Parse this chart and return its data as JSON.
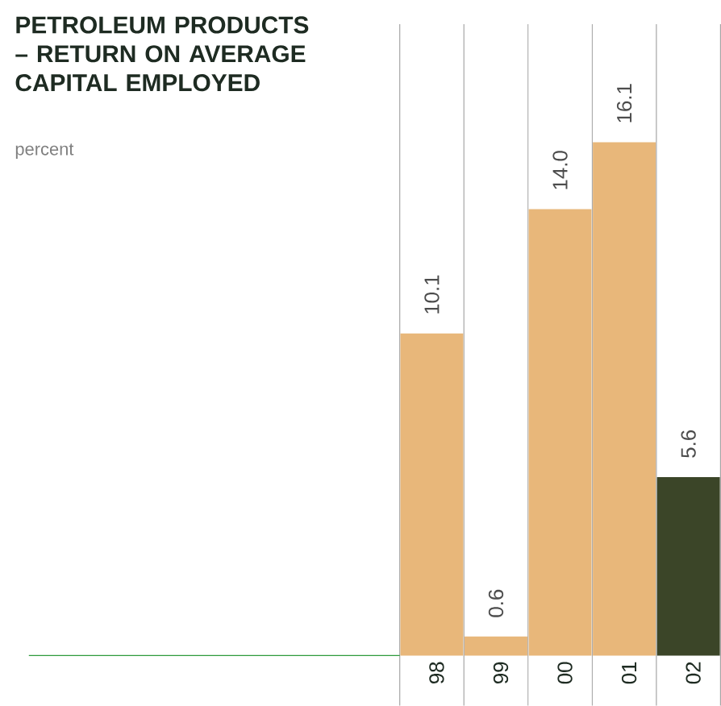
{
  "chart_data": {
    "type": "bar",
    "title": "PETROLEUM PRODUCTS – RETURN ON AVERAGE CAPITAL EMPLOYED",
    "subtitle": "percent",
    "categories": [
      "98",
      "99",
      "00",
      "01",
      "02"
    ],
    "values": [
      10.1,
      0.6,
      14.0,
      16.1,
      5.6
    ],
    "value_labels": [
      "10.1",
      "0.6",
      "14.0",
      "16.1",
      "5.6"
    ],
    "colors": [
      "#e8b77a",
      "#e8b77a",
      "#e8b77a",
      "#e8b77a",
      "#3b4528"
    ]
  }
}
